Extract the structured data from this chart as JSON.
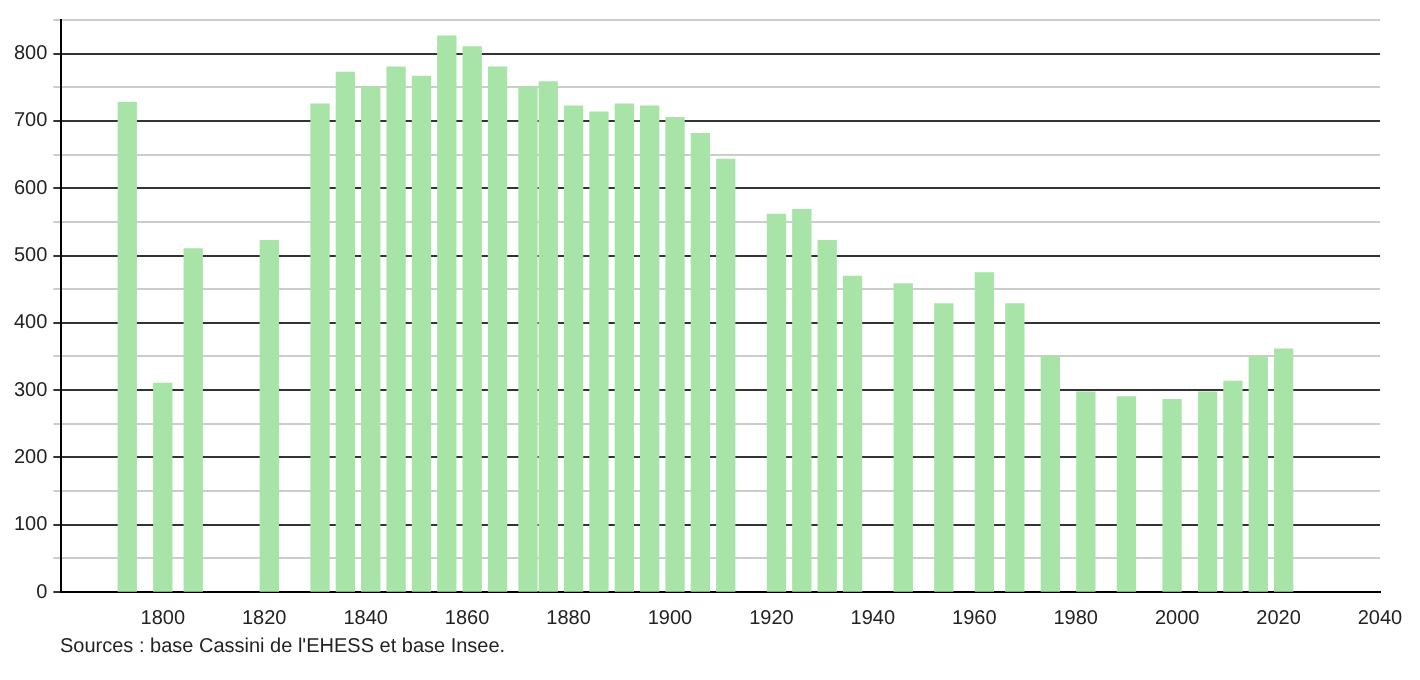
{
  "chart_data": {
    "type": "bar",
    "x": [
      1793,
      1800,
      1806,
      1821,
      1831,
      1836,
      1841,
      1846,
      1851,
      1856,
      1861,
      1866,
      1872,
      1876,
      1881,
      1886,
      1891,
      1896,
      1901,
      1906,
      1911,
      1921,
      1926,
      1931,
      1936,
      1946,
      1954,
      1962,
      1968,
      1975,
      1982,
      1990,
      1999,
      2006,
      2011,
      2016,
      2021
    ],
    "values": [
      727,
      310,
      510,
      522,
      725,
      772,
      750,
      780,
      766,
      826,
      810,
      780,
      750,
      758,
      722,
      713,
      725,
      722,
      705,
      681,
      643,
      561,
      568,
      522,
      469,
      458,
      428,
      474,
      428,
      350,
      297,
      290,
      286,
      297,
      313,
      350,
      361
    ],
    "color": "#a8e4a8",
    "xlim": [
      1780,
      2040
    ],
    "xticks": [
      1800,
      1820,
      1840,
      1860,
      1880,
      1900,
      1920,
      1940,
      1960,
      1980,
      2000,
      2020,
      2040
    ],
    "ylim": [
      0,
      850
    ],
    "yticks": [
      0,
      {
        "value": 50,
        "label": null
      },
      100,
      {
        "value": 150,
        "label": null
      },
      200,
      {
        "value": 250,
        "label": null
      },
      300,
      {
        "value": 350,
        "label": null
      },
      400,
      {
        "value": 450,
        "label": null
      },
      500,
      {
        "value": 550,
        "label": null
      },
      600,
      {
        "value": 650,
        "label": null
      },
      700,
      {
        "value": 750,
        "label": null
      },
      800,
      {
        "value": 850,
        "label": null
      }
    ],
    "grid": "y",
    "annotations": [
      "Sources : base Cassini de l'EHESS et base Insee."
    ]
  }
}
